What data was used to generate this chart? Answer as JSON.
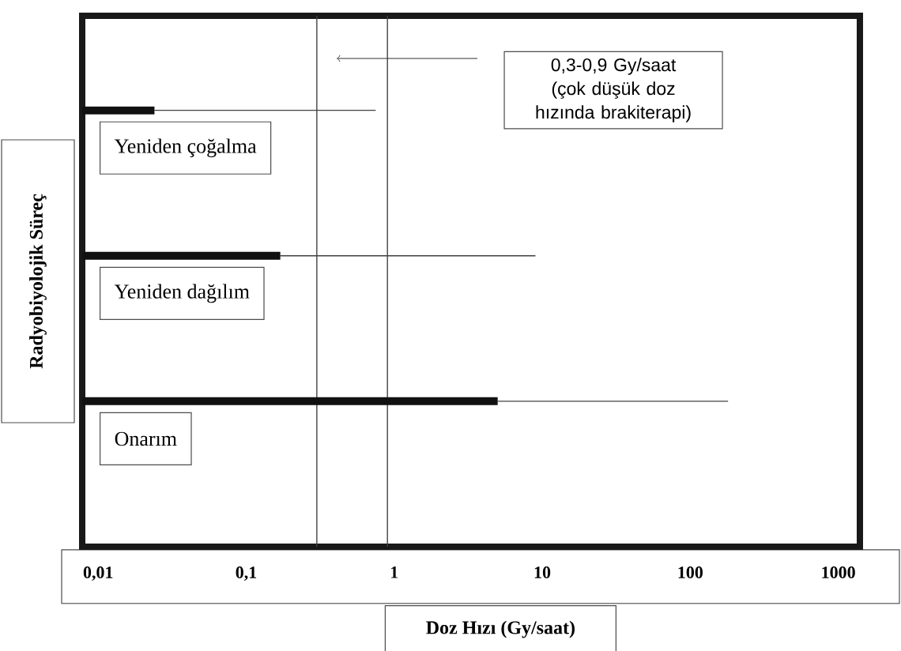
{
  "chart_data": {
    "type": "bar",
    "orientation": "horizontal",
    "log": "x",
    "tick_labels": "x",
    "xlabel": "Doz Hızı (Gy/saat)",
    "ylabel": "Radyobiyolojik Süreç",
    "categories": [
      "Yeniden çoğalma",
      "Yeniden dağılım",
      "Onarım"
    ],
    "series": [
      {
        "color": "#111111",
        "values": [
          0.024,
          0.17,
          5
        ],
        "errors": [
          [
            0.024,
            0.75
          ],
          [
            0.17,
            9
          ],
          [
            5,
            180
          ]
        ]
      }
    ],
    "xlim": [
      0.0078,
      1400
    ],
    "xticks": [
      {
        "value": 0.01,
        "label": "0,01"
      },
      {
        "value": 0.1,
        "label": "0,1"
      },
      {
        "value": 1,
        "label": "1"
      },
      {
        "value": 10,
        "label": "10"
      },
      {
        "value": 100,
        "label": "100"
      },
      {
        "value": 1000,
        "label": "1000"
      }
    ],
    "ref_lines": [
      {
        "axis": "x",
        "value": 0.3,
        "color": "#444444"
      },
      {
        "axis": "x",
        "value": 0.9,
        "color": "#444444"
      }
    ],
    "annotations": [
      "0,3-0,9 Gy/saat (çok düşük doz hızında brakiterapi)"
    ],
    "line_style": "solid"
  }
}
